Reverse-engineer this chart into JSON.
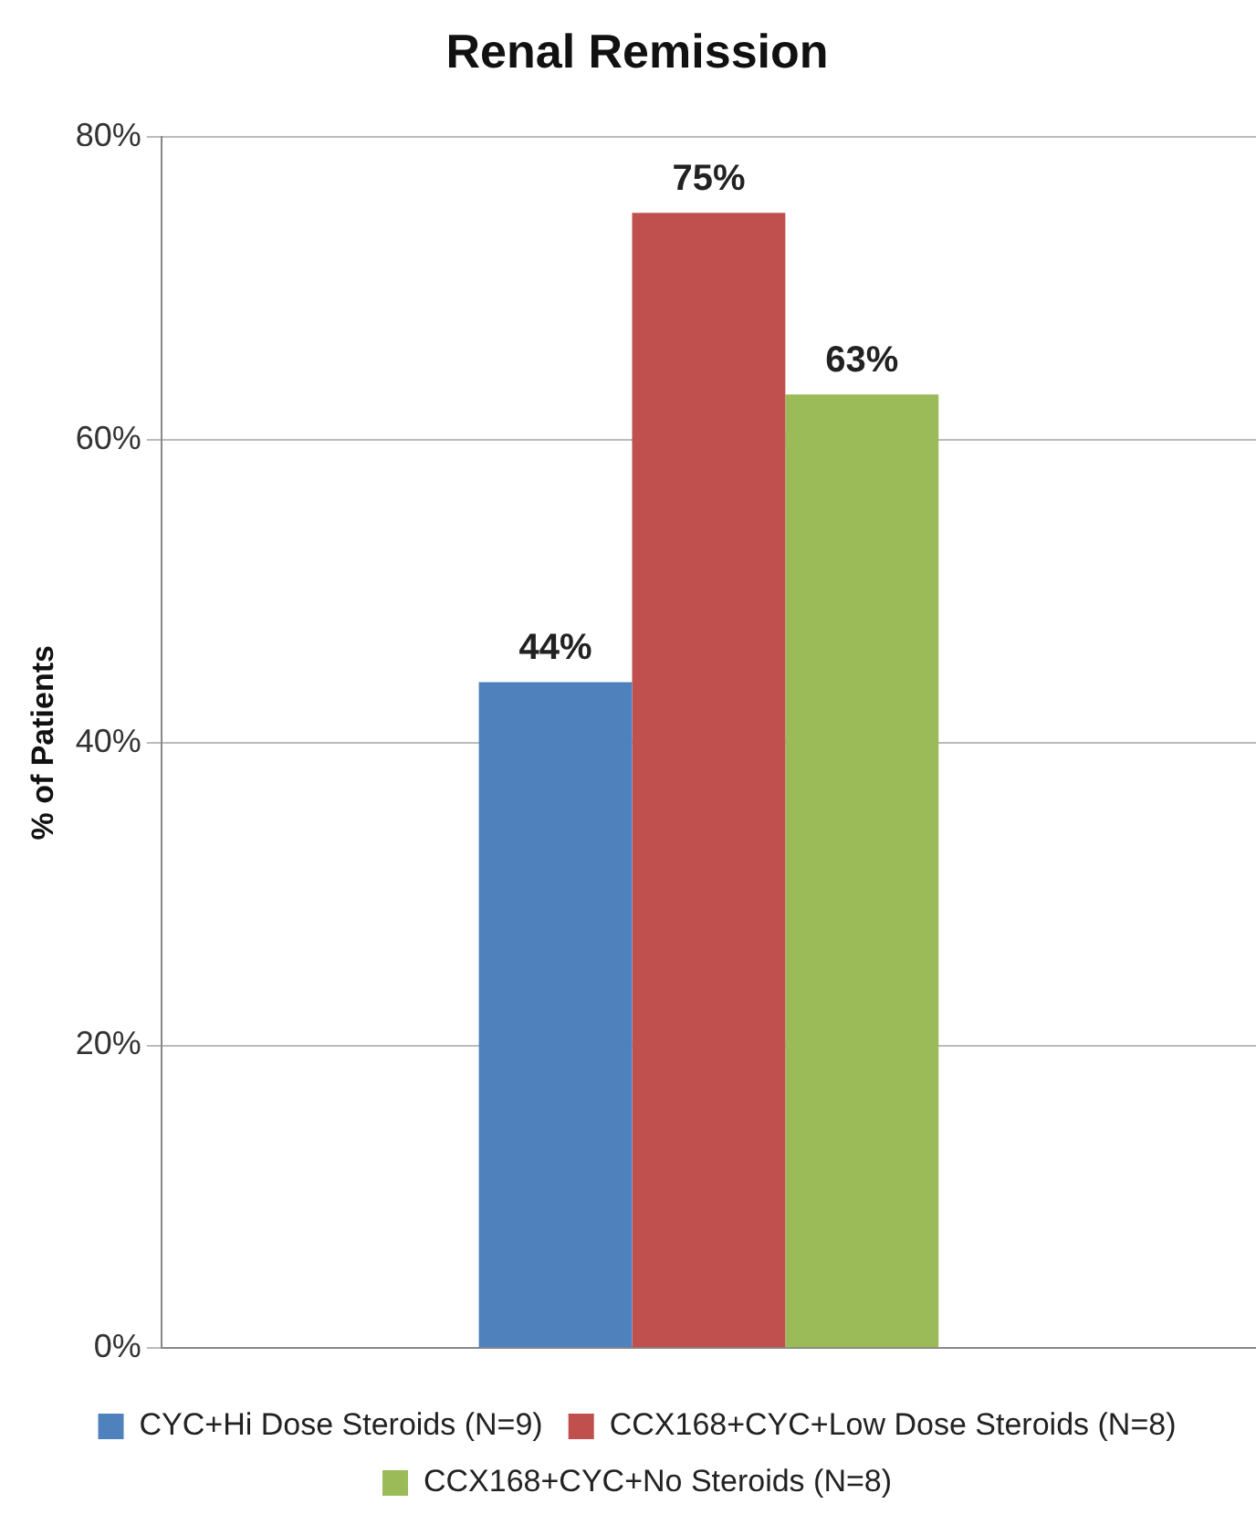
{
  "chart_data": {
    "type": "bar",
    "title": "Renal Remission",
    "ylabel": "% of Patients",
    "categories": [
      null
    ],
    "series": [
      {
        "name": "CYC+Hi Dose Steroids (N=9)",
        "color": "#4f81bd",
        "values": [
          44
        ],
        "value_labels": [
          "44%"
        ]
      },
      {
        "name": "CCX168+CYC+Low Dose Steroids (N=8)",
        "color": "#c0504d",
        "values": [
          75
        ],
        "value_labels": [
          "75%"
        ]
      },
      {
        "name": "CCX168+CYC+No Steroids (N=8)",
        "color": "#9bbb59",
        "values": [
          63
        ],
        "value_labels": [
          "63%"
        ]
      }
    ],
    "ylim": [
      0,
      80
    ],
    "yticks": [
      {
        "value": 0,
        "label": "0%"
      },
      {
        "value": 20,
        "label": "20%"
      },
      {
        "value": 40,
        "label": "40%"
      },
      {
        "value": 60,
        "label": "60%"
      },
      {
        "value": 80,
        "label": "80%"
      }
    ],
    "grid": "y",
    "legend": "bottom"
  }
}
